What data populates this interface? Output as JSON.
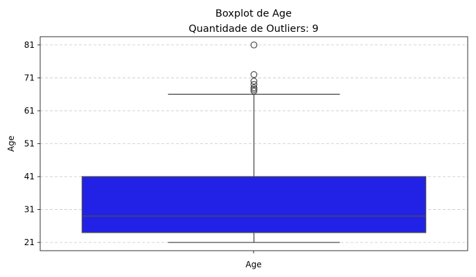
{
  "chart_data": {
    "type": "boxplot",
    "title": "Boxplot de Age",
    "subtitle": "Quantidade de Outliers: 9",
    "xlabel": "",
    "ylabel": "Age",
    "categories": [
      "Age"
    ],
    "yticks": [
      21,
      31,
      41,
      51,
      61,
      71,
      81
    ],
    "ylim": [
      18.5,
      83.5
    ],
    "grid": "y-dashed",
    "box": {
      "whisker_low": 21,
      "q1": 24,
      "median": 29,
      "q3": 41,
      "whisker_high": 66
    },
    "outliers": [
      67,
      67.5,
      68,
      69,
      70,
      72,
      81
    ],
    "colors": {
      "box_fill": "#2222e6",
      "lines": "#4d4d4d",
      "grid": "#c8c8c8",
      "axes": "#000000"
    }
  }
}
